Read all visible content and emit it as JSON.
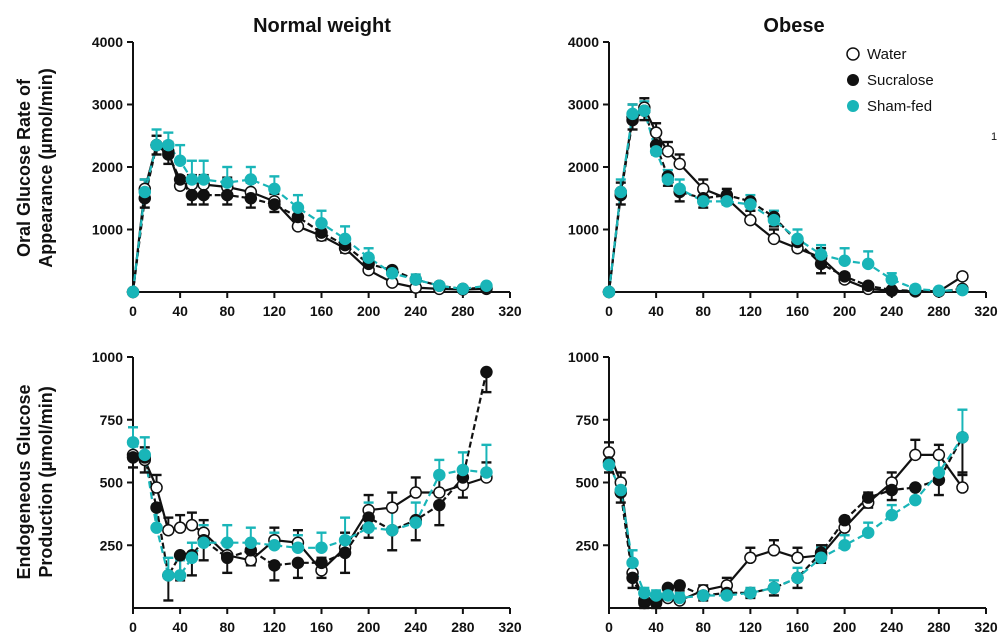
{
  "colors": {
    "water": "#ffffff",
    "sucralose": "#111111",
    "sham": "#19b5b8",
    "axis": "#111111"
  },
  "ylabels": {
    "oral_line1": "Oral Glucose Rate of",
    "oral_line2": "Appearance (µmol/min)",
    "egp_line1": "Endogeneous Glucose",
    "egp_line2": "Production (µmol/min)"
  },
  "stray_mark": "1",
  "chart_data": [
    {
      "type": "line",
      "title": "Normal weight",
      "ylabel": "Oral Glucose Rate of Appearance (µmol/min)",
      "xlim": [
        0,
        320
      ],
      "ylim": [
        0,
        4000
      ],
      "xticks": [
        0,
        40,
        80,
        120,
        160,
        200,
        240,
        280,
        320
      ],
      "yticks": [
        1000,
        2000,
        3000,
        4000
      ],
      "x": [
        0,
        10,
        20,
        30,
        40,
        50,
        60,
        80,
        100,
        120,
        140,
        160,
        180,
        200,
        220,
        240,
        260,
        280,
        300
      ],
      "series": [
        {
          "name": "Water",
          "values": [
            0,
            1650,
            2350,
            2250,
            1700,
            1720,
            1720,
            1680,
            1600,
            1450,
            1050,
            900,
            700,
            350,
            150,
            70,
            50,
            40,
            50
          ],
          "err": [
            0,
            150,
            150,
            150,
            150,
            150,
            150,
            150,
            150,
            120,
            100,
            100,
            100,
            80,
            50,
            30,
            20,
            20,
            20
          ]
        },
        {
          "name": "Sucralose",
          "values": [
            0,
            1500,
            2350,
            2200,
            1800,
            1550,
            1550,
            1550,
            1500,
            1400,
            1200,
            950,
            750,
            450,
            350,
            200,
            100,
            50,
            70
          ],
          "err": [
            0,
            150,
            150,
            150,
            150,
            150,
            150,
            150,
            150,
            120,
            120,
            120,
            120,
            100,
            80,
            50,
            30,
            20,
            20
          ]
        },
        {
          "name": "Sham-fed",
          "values": [
            0,
            1600,
            2350,
            2350,
            2100,
            1800,
            1800,
            1750,
            1800,
            1650,
            1350,
            1100,
            850,
            550,
            300,
            200,
            100,
            50,
            100
          ],
          "err": [
            0,
            200,
            250,
            200,
            250,
            300,
            300,
            250,
            200,
            200,
            200,
            200,
            200,
            150,
            100,
            80,
            50,
            30,
            30
          ]
        }
      ]
    },
    {
      "type": "line",
      "title": "Obese",
      "ylabel": "",
      "xlim": [
        0,
        320
      ],
      "ylim": [
        0,
        4000
      ],
      "xticks": [
        0,
        40,
        80,
        120,
        160,
        200,
        240,
        280,
        320
      ],
      "yticks": [
        1000,
        2000,
        3000,
        4000
      ],
      "legend": {
        "position": "top-right",
        "entries": [
          "Water",
          "Sucralose",
          "Sham-fed"
        ]
      },
      "x": [
        0,
        10,
        20,
        30,
        40,
        50,
        60,
        80,
        100,
        120,
        140,
        160,
        180,
        200,
        220,
        240,
        260,
        280,
        300
      ],
      "series": [
        {
          "name": "Water",
          "values": [
            0,
            1600,
            2800,
            2950,
            2550,
            2250,
            2050,
            1650,
            1500,
            1150,
            850,
            700,
            550,
            200,
            50,
            20,
            10,
            10,
            250
          ],
          "err": [
            0,
            150,
            200,
            150,
            150,
            150,
            150,
            150,
            150,
            150,
            150,
            150,
            150,
            100,
            50,
            20,
            10,
            10,
            50
          ]
        },
        {
          "name": "Sucralose",
          "values": [
            0,
            1550,
            2750,
            2900,
            2350,
            1850,
            1600,
            1500,
            1550,
            1450,
            1200,
            800,
            450,
            250,
            100,
            30,
            20,
            10,
            50
          ],
          "err": [
            0,
            150,
            150,
            150,
            150,
            150,
            150,
            150,
            150,
            150,
            150,
            150,
            150,
            100,
            50,
            20,
            10,
            10,
            20
          ]
        },
        {
          "name": "Sham-fed",
          "values": [
            0,
            1600,
            2850,
            2900,
            2250,
            1800,
            1650,
            1450,
            1450,
            1400,
            1150,
            850,
            600,
            500,
            450,
            200,
            50,
            20,
            30
          ],
          "err": [
            0,
            200,
            150,
            150,
            150,
            150,
            150,
            150,
            150,
            150,
            150,
            150,
            150,
            200,
            200,
            100,
            50,
            20,
            20
          ]
        }
      ]
    },
    {
      "type": "line",
      "title": "",
      "ylabel": "Endogeneous Glucose Production (µmol/min)",
      "xlim": [
        0,
        320
      ],
      "ylim": [
        0,
        1000
      ],
      "xticks": [
        0,
        40,
        80,
        120,
        160,
        200,
        240,
        280,
        320
      ],
      "yticks": [
        250,
        500,
        750,
        1000
      ],
      "x": [
        0,
        10,
        20,
        30,
        40,
        50,
        60,
        80,
        100,
        120,
        140,
        160,
        180,
        200,
        220,
        240,
        260,
        280,
        300
      ],
      "series": [
        {
          "name": "Water",
          "values": [
            610,
            590,
            480,
            310,
            320,
            330,
            300,
            210,
            190,
            270,
            260,
            150,
            240,
            390,
            400,
            460,
            460,
            490,
            520
          ],
          "err": [
            40,
            50,
            50,
            50,
            50,
            50,
            50,
            50,
            50,
            50,
            50,
            50,
            60,
            60,
            60,
            60,
            60,
            60,
            60
          ]
        },
        {
          "name": "Sucralose",
          "values": [
            600,
            600,
            400,
            130,
            210,
            210,
            270,
            200,
            230,
            170,
            180,
            180,
            220,
            360,
            310,
            350,
            410,
            520,
            940
          ],
          "err": [
            40,
            60,
            80,
            100,
            100,
            80,
            80,
            60,
            60,
            60,
            60,
            60,
            80,
            80,
            80,
            80,
            80,
            80,
            80
          ]
        },
        {
          "name": "Sham-fed",
          "values": [
            660,
            610,
            320,
            130,
            130,
            200,
            260,
            260,
            260,
            250,
            240,
            240,
            270,
            320,
            310,
            340,
            530,
            550,
            540
          ],
          "err": [
            60,
            70,
            70,
            70,
            60,
            60,
            70,
            70,
            60,
            50,
            50,
            60,
            90,
            100,
            80,
            80,
            60,
            70,
            110
          ]
        }
      ]
    },
    {
      "type": "line",
      "title": "",
      "ylabel": "",
      "xlim": [
        0,
        320
      ],
      "ylim": [
        0,
        1000
      ],
      "xticks": [
        0,
        40,
        80,
        120,
        160,
        200,
        240,
        280,
        320
      ],
      "yticks": [
        250,
        500,
        750,
        1000
      ],
      "x": [
        0,
        10,
        20,
        30,
        40,
        50,
        60,
        80,
        100,
        120,
        140,
        160,
        180,
        200,
        220,
        240,
        260,
        280,
        300
      ],
      "series": [
        {
          "name": "Water",
          "values": [
            620,
            500,
            140,
            30,
            30,
            40,
            30,
            70,
            90,
            200,
            230,
            200,
            210,
            320,
            420,
            500,
            610,
            610,
            480
          ],
          "err": [
            40,
            40,
            30,
            20,
            20,
            20,
            20,
            20,
            30,
            40,
            40,
            40,
            40,
            40,
            40,
            40,
            60,
            40,
            60
          ]
        },
        {
          "name": "Sucralose",
          "values": [
            580,
            460,
            120,
            20,
            20,
            80,
            90,
            50,
            60,
            60,
            80,
            120,
            220,
            350,
            440,
            470,
            480,
            510,
            680
          ],
          "err": [
            40,
            40,
            40,
            20,
            20,
            20,
            20,
            20,
            20,
            20,
            30,
            40,
            40,
            40,
            40,
            40,
            60,
            60,
            150
          ]
        },
        {
          "name": "Sham-fed",
          "values": [
            570,
            470,
            180,
            60,
            50,
            50,
            40,
            50,
            50,
            60,
            80,
            120,
            200,
            250,
            300,
            370,
            430,
            540,
            680
          ],
          "err": [
            40,
            40,
            50,
            20,
            20,
            20,
            20,
            20,
            20,
            20,
            30,
            40,
            40,
            40,
            40,
            40,
            60,
            60,
            110
          ]
        }
      ]
    }
  ]
}
